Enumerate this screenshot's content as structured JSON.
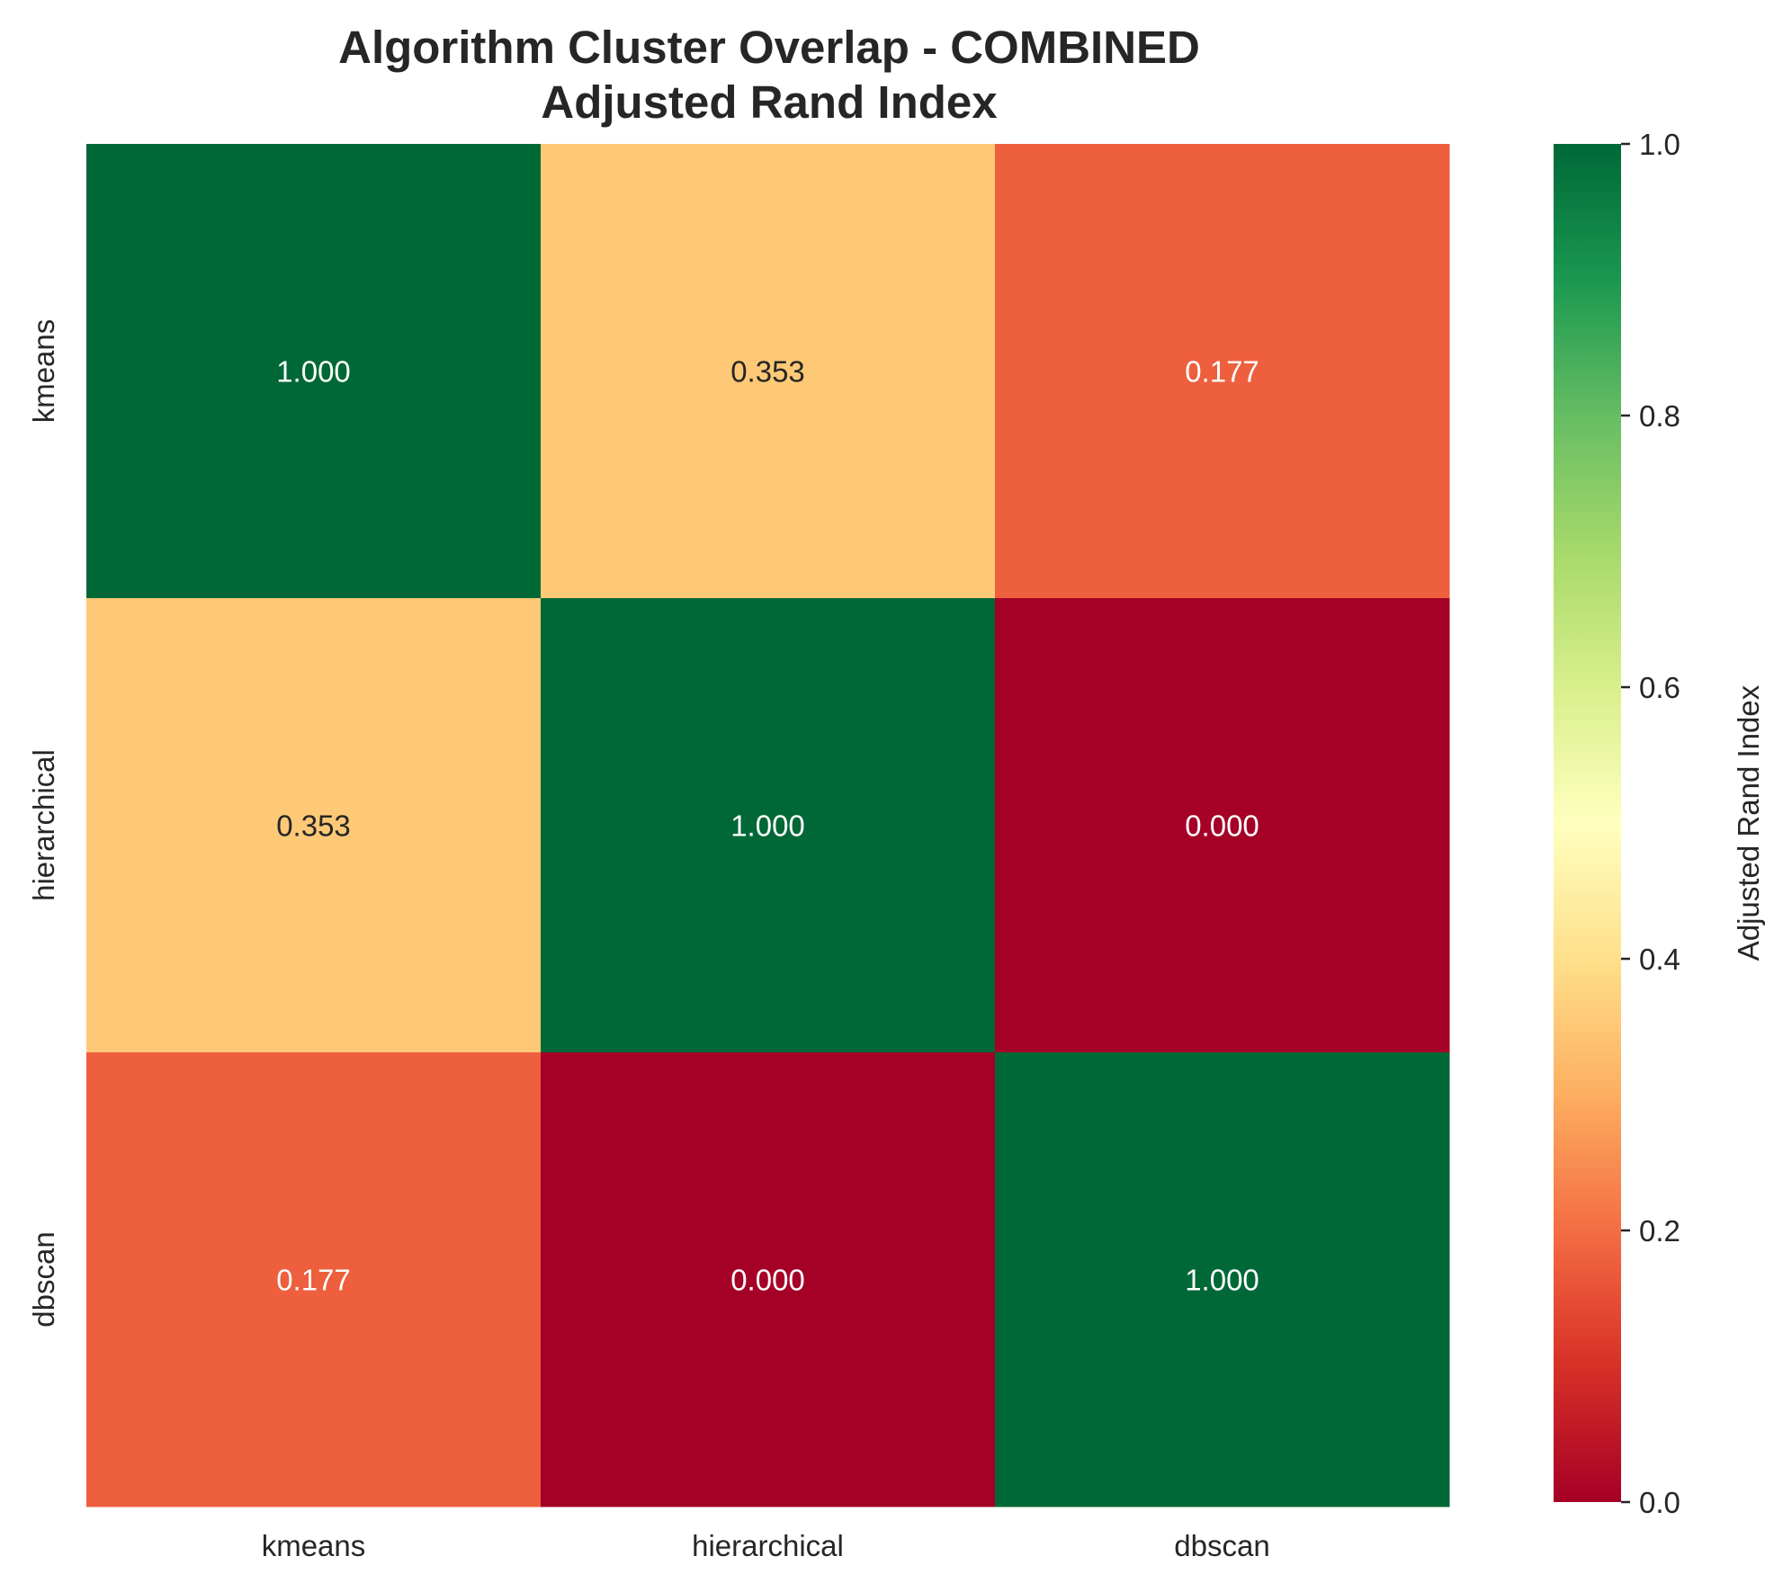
{
  "chart_data": {
    "type": "heatmap",
    "title": "Algorithm Cluster Overlap - COMBINED",
    "subtitle": "Adjusted Rand Index",
    "x_categories": [
      "kmeans",
      "hierarchical",
      "dbscan"
    ],
    "y_categories": [
      "kmeans",
      "hierarchical",
      "dbscan"
    ],
    "values": [
      [
        1.0,
        0.353,
        0.177
      ],
      [
        0.353,
        1.0,
        0.0
      ],
      [
        0.177,
        0.0,
        1.0
      ]
    ],
    "value_labels": [
      [
        "1.000",
        "0.353",
        "0.177"
      ],
      [
        "0.353",
        "1.000",
        "0.000"
      ],
      [
        "0.177",
        "0.000",
        "1.000"
      ]
    ],
    "colormap": "RdYlGn",
    "colorbar": {
      "label": "Adjusted Rand Index",
      "range": [
        0.0,
        1.0
      ],
      "ticks": [
        0.0,
        0.2,
        0.4,
        0.6,
        0.8,
        1.0
      ],
      "tick_labels": [
        "0.0",
        "0.2",
        "0.4",
        "0.6",
        "0.8",
        "1.0"
      ],
      "placement": "right"
    },
    "grid": false,
    "colors": {
      "low": "#a50026",
      "mid": "#ffffbf",
      "high": "#006837",
      "text_dark": "#262626",
      "text_light": "#ffffff"
    }
  }
}
